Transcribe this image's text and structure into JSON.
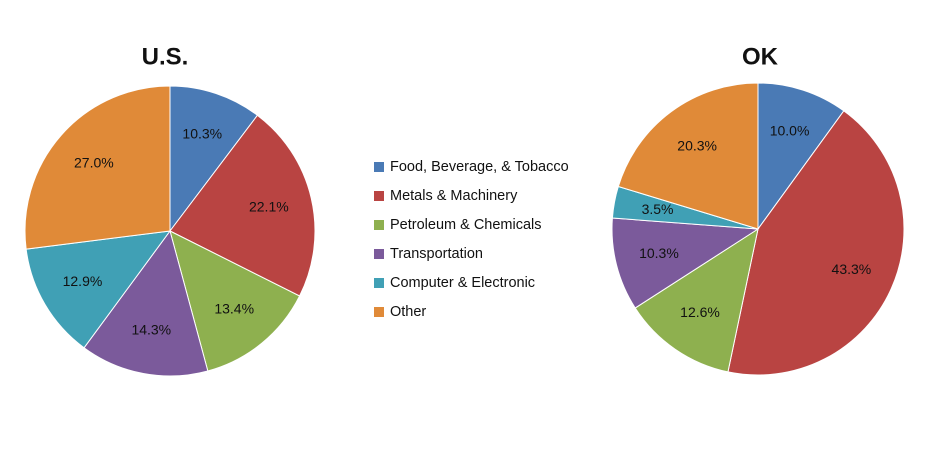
{
  "chart_data": [
    {
      "type": "pie",
      "title": "U.S.",
      "categories": [
        "Food, Beverage, & Tobacco",
        "Metals & Machinery",
        "Petroleum & Chemicals",
        "Transportation",
        "Computer & Electronic",
        "Other"
      ],
      "values": [
        10.3,
        22.1,
        13.4,
        14.3,
        12.9,
        27.0
      ],
      "value_labels": [
        "10.3%",
        "22.1%",
        "13.4%",
        "14.3%",
        "12.9%",
        "27.0%"
      ],
      "colors": [
        "#4a7ab5",
        "#b94442",
        "#8eb04f",
        "#7b5a9b",
        "#40a0b5",
        "#e08a38"
      ]
    },
    {
      "type": "pie",
      "title": "OK",
      "values": [
        10.0,
        43.3,
        12.6,
        10.3,
        3.5,
        20.3
      ],
      "value_labels": [
        "10.0%",
        "43.3%",
        "12.6%",
        "10.3%",
        "3.5%",
        "20.3%"
      ]
    }
  ]
}
